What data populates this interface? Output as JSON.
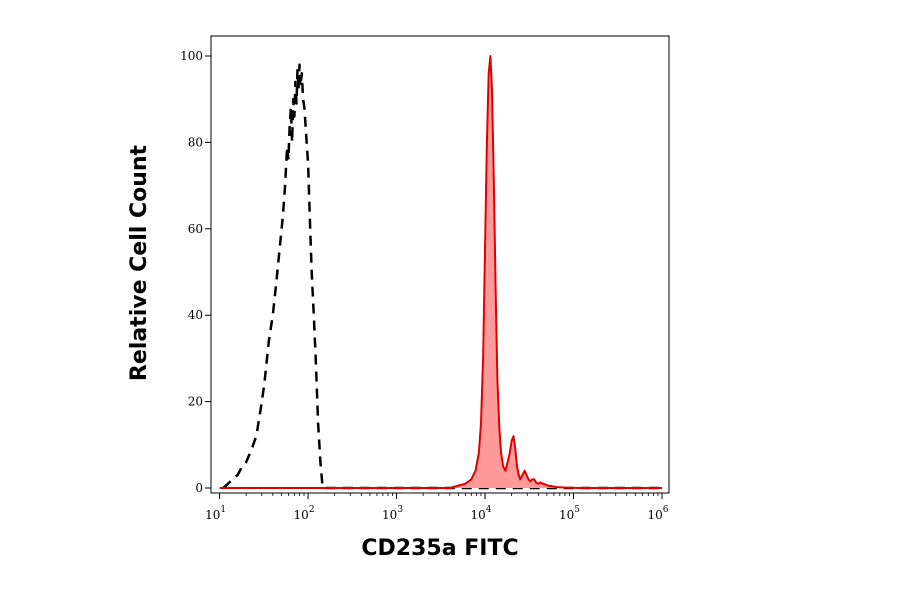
{
  "chart_data": {
    "type": "area",
    "title": "",
    "xlabel": "CD235a FITC",
    "ylabel": "Relative Cell Count",
    "x_scale": "log",
    "xlim": [
      8,
      1200000
    ],
    "ylim": [
      0,
      100
    ],
    "grid": false,
    "x_ticks": [
      {
        "base": "10",
        "exp": "1",
        "value": 10
      },
      {
        "base": "10",
        "exp": "2",
        "value": 100
      },
      {
        "base": "10",
        "exp": "3",
        "value": 1000
      },
      {
        "base": "10",
        "exp": "4",
        "value": 10000
      },
      {
        "base": "10",
        "exp": "5",
        "value": 100000
      },
      {
        "base": "10",
        "exp": "6",
        "value": 1000000
      }
    ],
    "y_ticks": [
      0,
      20,
      40,
      60,
      80,
      100
    ],
    "series": [
      {
        "style": "dashed",
        "color": "#000000",
        "fill": "none",
        "x": [
          11,
          12.5,
          14,
          16,
          18,
          20,
          23,
          26,
          29,
          32,
          36,
          40,
          44,
          48,
          52,
          55,
          58,
          60,
          62,
          64,
          66,
          68,
          70,
          72,
          74,
          76,
          78,
          80,
          82,
          85,
          88,
          91,
          95,
          100,
          105,
          110,
          116,
          122,
          130,
          138,
          145,
          150,
          300,
          1000,
          3000,
          10000,
          100000,
          1000000
        ],
        "y": [
          0,
          1,
          2,
          3,
          5,
          6,
          9,
          12,
          18,
          24,
          34,
          40,
          48,
          56,
          63,
          70,
          79,
          76,
          84,
          88,
          80,
          90,
          86,
          94,
          89,
          97,
          92,
          98,
          93,
          96,
          90,
          88,
          82,
          75,
          62,
          50,
          40,
          30,
          15,
          6,
          1,
          0,
          0,
          0,
          0,
          0,
          0,
          0
        ]
      },
      {
        "style": "solid",
        "color": "#e00000",
        "fill": "#ff9a9a",
        "x": [
          10,
          1000,
          4000,
          6000,
          7000,
          7800,
          8500,
          9000,
          9500,
          10000,
          10500,
          11000,
          11500,
          12000,
          12600,
          13200,
          13800,
          14500,
          15200,
          16000,
          17000,
          18000,
          19000,
          20000,
          21000,
          22000,
          23000,
          24000,
          25000,
          26500,
          28000,
          29500,
          31000,
          32500,
          34000,
          36000,
          38000,
          40000,
          42500,
          45000,
          48000,
          52000,
          57000,
          65000,
          80000,
          120000,
          1000000
        ],
        "y": [
          0,
          0,
          0,
          1,
          2,
          4,
          8,
          15,
          30,
          55,
          80,
          96,
          100,
          92,
          70,
          45,
          25,
          14,
          8,
          5,
          4,
          6,
          8,
          11,
          12,
          9,
          5,
          3,
          2,
          3,
          4,
          3,
          2,
          1.5,
          2,
          2,
          1.2,
          1,
          1.3,
          1,
          0.8,
          0.5,
          0.4,
          0.2,
          0.1,
          0,
          0
        ]
      }
    ]
  }
}
